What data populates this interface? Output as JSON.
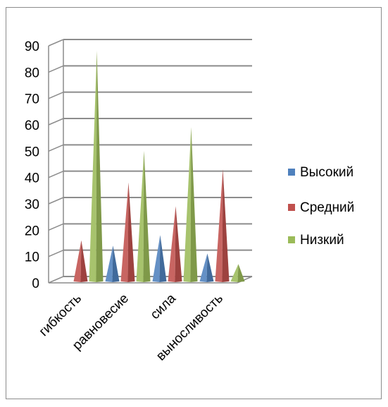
{
  "chart_data": {
    "type": "bar",
    "categories": [
      "гибкость",
      "равновесие",
      "сила",
      "выносливость"
    ],
    "series": [
      {
        "name": "Высокий",
        "values": [
          0,
          12,
          16,
          9
        ],
        "color": "#4F81BD"
      },
      {
        "name": "Средний",
        "values": [
          14,
          36,
          27,
          41
        ],
        "color": "#C0504D"
      },
      {
        "name": "Низкий",
        "values": [
          86,
          48,
          57,
          5
        ],
        "color": "#9BBB59"
      }
    ],
    "ylim": [
      0,
      90
    ],
    "yticks": [
      0,
      10,
      20,
      30,
      40,
      50,
      60,
      70,
      80,
      90
    ],
    "grid": true,
    "legend": "right",
    "title": "",
    "xlabel": "",
    "ylabel": ""
  }
}
